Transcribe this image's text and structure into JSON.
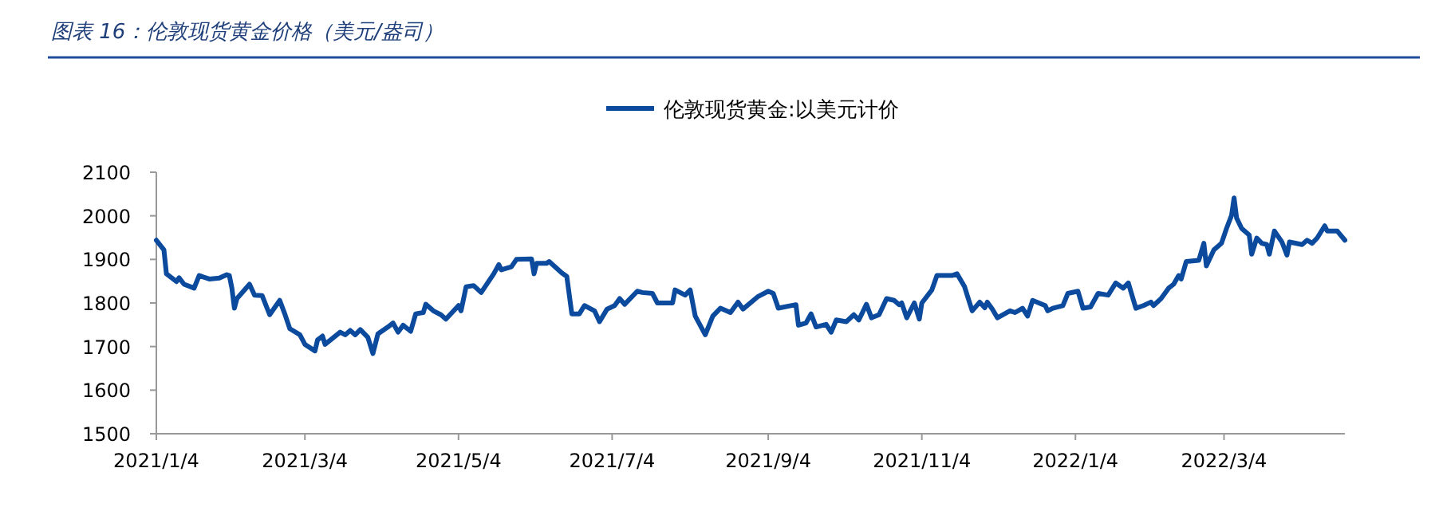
{
  "chart_data": {
    "type": "line",
    "title": "图表 16：伦敦现货黄金价格（美元/盎司）",
    "legend": "top",
    "grid": false,
    "marker": "none",
    "line_style": "solid",
    "xlim": [
      "2021-01-04",
      "2022-04-21"
    ],
    "ylim": [
      1500,
      2100
    ],
    "yticks": [
      1500,
      1600,
      1700,
      1800,
      1900,
      2000,
      2100
    ],
    "xticks": [
      {
        "value": "2021-01-04",
        "label": "2021/1/4"
      },
      {
        "value": "2021-03-04",
        "label": "2021/3/4"
      },
      {
        "value": "2021-05-04",
        "label": "2021/5/4"
      },
      {
        "value": "2021-07-04",
        "label": "2021/7/4"
      },
      {
        "value": "2021-09-04",
        "label": "2021/9/4"
      },
      {
        "value": "2021-11-04",
        "label": "2021/11/4"
      },
      {
        "value": "2022-01-04",
        "label": "2022/1/4"
      },
      {
        "value": "2022-03-04",
        "label": "2022/3/4"
      }
    ],
    "x": [
      "2021-01-04",
      "2021-01-07",
      "2021-01-08",
      "2021-01-12",
      "2021-01-13",
      "2021-01-15",
      "2021-01-19",
      "2021-01-21",
      "2021-01-25",
      "2021-01-29",
      "2021-02-01",
      "2021-02-02",
      "2021-02-03",
      "2021-02-04",
      "2021-02-05",
      "2021-02-10",
      "2021-02-12",
      "2021-02-15",
      "2021-02-18",
      "2021-02-22",
      "2021-02-24",
      "2021-02-26",
      "2021-03-02",
      "2021-03-04",
      "2021-03-08",
      "2021-03-09",
      "2021-03-11",
      "2021-03-12",
      "2021-03-18",
      "2021-03-20",
      "2021-03-22",
      "2021-03-24",
      "2021-03-26",
      "2021-03-29",
      "2021-03-31",
      "2021-04-02",
      "2021-04-06",
      "2021-04-08",
      "2021-04-10",
      "2021-04-12",
      "2021-04-15",
      "2021-04-17",
      "2021-04-20",
      "2021-04-21",
      "2021-04-24",
      "2021-04-27",
      "2021-04-29",
      "2021-05-04",
      "2021-05-05",
      "2021-05-07",
      "2021-05-10",
      "2021-05-13",
      "2021-05-18",
      "2021-05-20",
      "2021-05-21",
      "2021-05-25",
      "2021-05-27",
      "2021-06-02",
      "2021-06-03",
      "2021-06-04",
      "2021-06-08",
      "2021-06-09",
      "2021-06-14",
      "2021-06-16",
      "2021-06-18",
      "2021-06-21",
      "2021-06-23",
      "2021-06-27",
      "2021-06-29",
      "2021-07-02",
      "2021-07-05",
      "2021-07-07",
      "2021-07-09",
      "2021-07-14",
      "2021-07-16",
      "2021-07-20",
      "2021-07-22",
      "2021-07-28",
      "2021-07-29",
      "2021-08-02",
      "2021-08-04",
      "2021-08-06",
      "2021-08-10",
      "2021-08-13",
      "2021-08-16",
      "2021-08-20",
      "2021-08-23",
      "2021-08-25",
      "2021-08-31",
      "2021-09-04",
      "2021-09-06",
      "2021-09-08",
      "2021-09-15",
      "2021-09-16",
      "2021-09-19",
      "2021-09-21",
      "2021-09-23",
      "2021-09-27",
      "2021-09-29",
      "2021-10-01",
      "2021-10-05",
      "2021-10-08",
      "2021-10-10",
      "2021-10-13",
      "2021-10-15",
      "2021-10-18",
      "2021-10-21",
      "2021-10-24",
      "2021-10-26",
      "2021-10-27",
      "2021-10-29",
      "2021-11-01",
      "2021-11-03",
      "2021-11-04",
      "2021-11-08",
      "2021-11-10",
      "2021-11-16",
      "2021-11-18",
      "2021-11-21",
      "2021-11-22",
      "2021-11-24",
      "2021-11-27",
      "2021-11-29",
      "2021-11-30",
      "2021-12-02",
      "2021-12-04",
      "2021-12-09",
      "2021-12-11",
      "2021-12-14",
      "2021-12-16",
      "2021-12-18",
      "2021-12-23",
      "2021-12-24",
      "2021-12-26",
      "2021-12-30",
      "2022-01-01",
      "2022-01-05",
      "2022-01-07",
      "2022-01-10",
      "2022-01-13",
      "2022-01-17",
      "2022-01-20",
      "2022-01-23",
      "2022-01-25",
      "2022-01-28",
      "2022-01-31",
      "2022-02-03",
      "2022-02-04",
      "2022-02-07",
      "2022-02-10",
      "2022-02-12",
      "2022-02-14",
      "2022-02-15",
      "2022-02-17",
      "2022-02-22",
      "2022-02-24",
      "2022-02-25",
      "2022-02-28",
      "2022-03-03",
      "2022-03-05",
      "2022-03-07",
      "2022-03-08",
      "2022-03-09",
      "2022-03-11",
      "2022-03-14",
      "2022-03-15",
      "2022-03-17",
      "2022-03-19",
      "2022-03-21",
      "2022-03-22",
      "2022-03-24",
      "2022-03-27",
      "2022-03-29",
      "2022-03-30",
      "2022-04-04",
      "2022-04-06",
      "2022-04-08",
      "2022-04-10",
      "2022-04-13",
      "2022-04-14",
      "2022-04-18",
      "2022-04-21"
    ],
    "series": [
      {
        "name": "伦敦现货黄金:以美元计价",
        "color": "#0b4a9c",
        "values": [
          1944,
          1922,
          1867,
          1849,
          1858,
          1843,
          1834,
          1863,
          1855,
          1857,
          1865,
          1863,
          1834,
          1788,
          1810,
          1843,
          1818,
          1817,
          1773,
          1806,
          1775,
          1741,
          1727,
          1705,
          1690,
          1715,
          1724,
          1705,
          1733,
          1727,
          1737,
          1727,
          1739,
          1721,
          1684,
          1729,
          1745,
          1754,
          1733,
          1749,
          1735,
          1775,
          1778,
          1797,
          1782,
          1773,
          1763,
          1794,
          1782,
          1837,
          1840,
          1824,
          1867,
          1888,
          1876,
          1883,
          1900,
          1901,
          1867,
          1891,
          1891,
          1895,
          1869,
          1861,
          1775,
          1775,
          1794,
          1782,
          1757,
          1786,
          1794,
          1810,
          1797,
          1827,
          1824,
          1822,
          1800,
          1800,
          1830,
          1818,
          1830,
          1770,
          1727,
          1770,
          1788,
          1778,
          1802,
          1786,
          1815,
          1827,
          1822,
          1788,
          1796,
          1749,
          1754,
          1775,
          1745,
          1751,
          1733,
          1761,
          1757,
          1773,
          1761,
          1797,
          1766,
          1773,
          1810,
          1806,
          1796,
          1800,
          1766,
          1800,
          1763,
          1800,
          1830,
          1863,
          1863,
          1867,
          1837,
          1818,
          1782,
          1802,
          1789,
          1802,
          1786,
          1766,
          1782,
          1778,
          1788,
          1770,
          1806,
          1794,
          1782,
          1788,
          1794,
          1822,
          1827,
          1788,
          1791,
          1822,
          1818,
          1846,
          1834,
          1846,
          1788,
          1794,
          1802,
          1794,
          1810,
          1834,
          1843,
          1863,
          1855,
          1895,
          1898,
          1937,
          1885,
          1922,
          1937,
          1971,
          2001,
          2041,
          1995,
          1971,
          1956,
          1912,
          1949,
          1937,
          1934,
          1912,
          1965,
          1940,
          1910,
          1940,
          1934,
          1944,
          1937,
          1949,
          1977,
          1965,
          1965,
          1944
        ]
      }
    ]
  }
}
